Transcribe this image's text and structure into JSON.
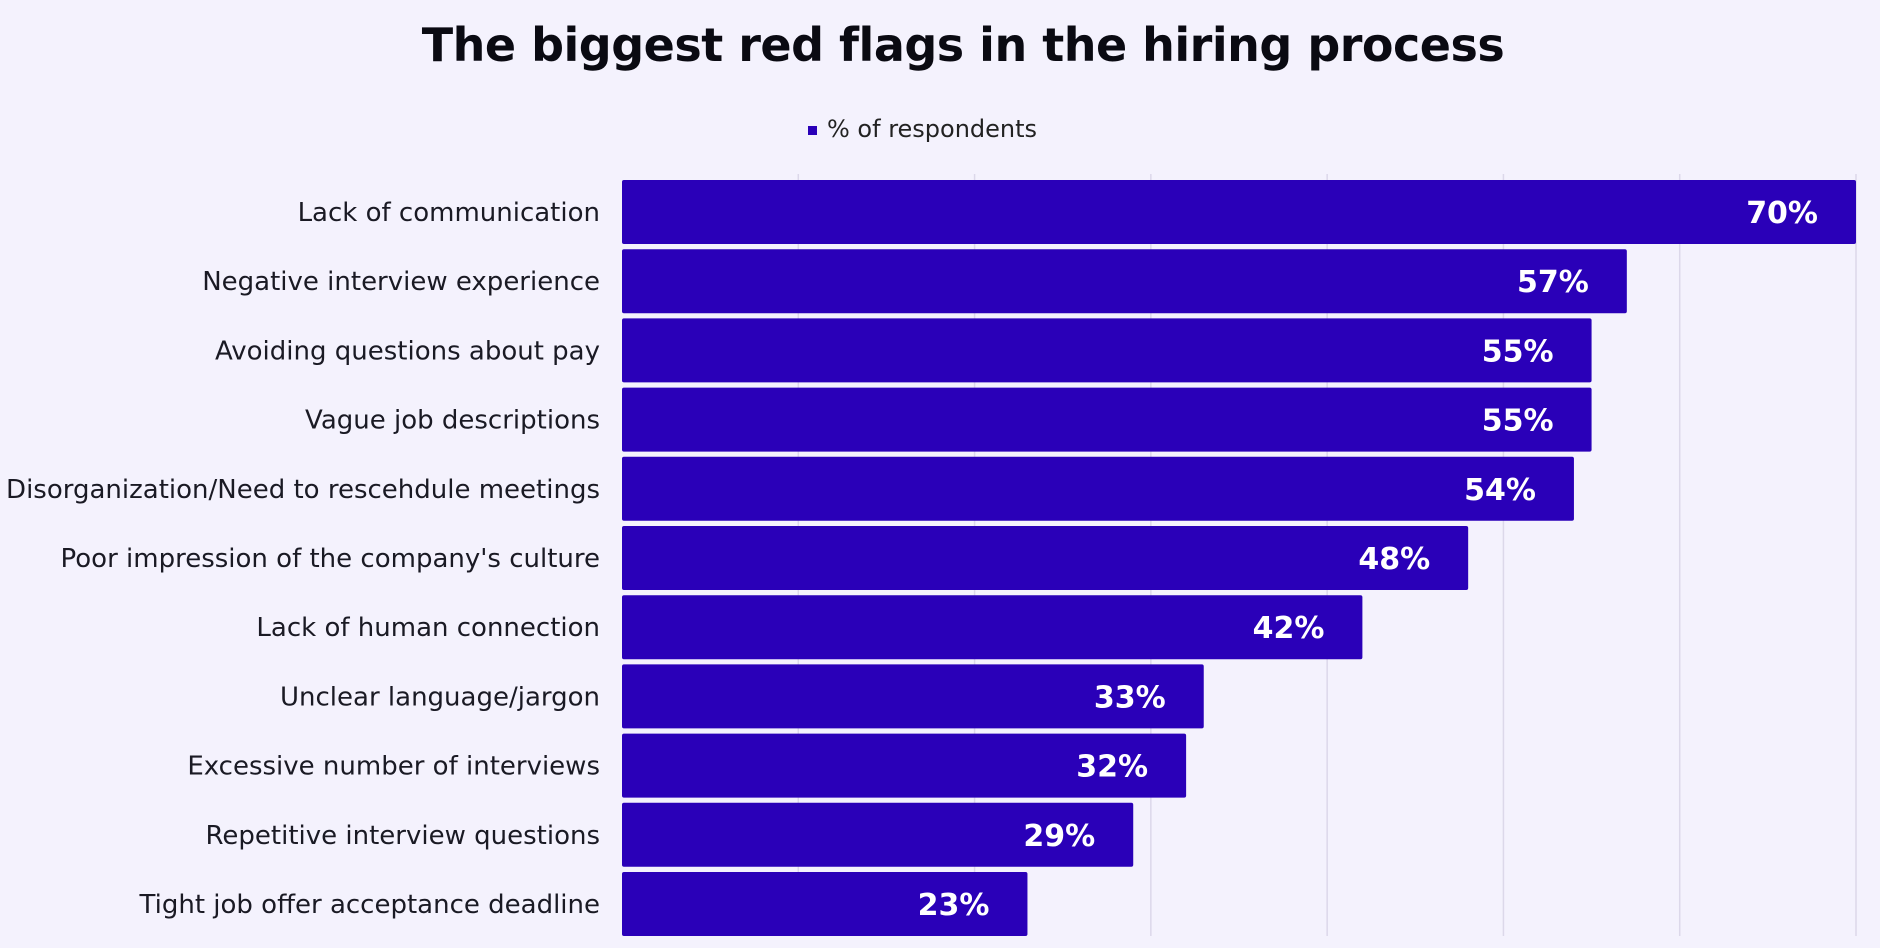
{
  "chart_data": {
    "type": "bar",
    "orientation": "horizontal",
    "title": "The biggest red flags in the hiring process",
    "legend_position": "top-center",
    "grid": true,
    "xlim": [
      0,
      70
    ],
    "series": [
      {
        "name": "% of respondents",
        "color": "#2a00b8",
        "values": [
          70,
          57,
          55,
          55,
          54,
          48,
          42,
          33,
          32,
          29,
          23
        ]
      }
    ],
    "categories": [
      "Lack of communication",
      "Negative interview experience",
      "Avoiding questions about pay",
      "Vague job descriptions",
      "Disorganization/Need to rescehdule meetings",
      "Poor impression of the company's culture",
      "Lack of human connection",
      "Unclear language/jargon",
      "Excessive number of interviews",
      "Repetitive interview questions",
      "Tight job offer acceptance deadline"
    ],
    "value_labels": [
      "70%",
      "57%",
      "55%",
      "55%",
      "54%",
      "48%",
      "42%",
      "33%",
      "32%",
      "29%",
      "23%"
    ]
  }
}
